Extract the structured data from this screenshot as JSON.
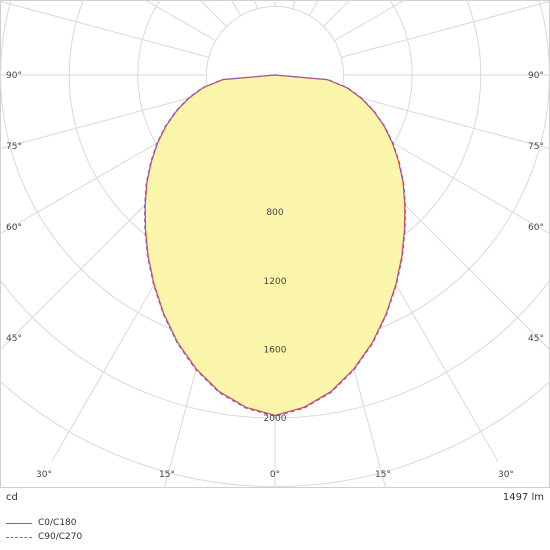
{
  "chart_data": {
    "type": "polar",
    "unit": "cd",
    "flux": "1497 lm",
    "r_max": 2400,
    "ring_values": [
      400,
      800,
      1200,
      1600,
      2000,
      2400
    ],
    "ring_labels": [
      "800",
      "1200",
      "1600",
      "2000"
    ],
    "angle_labels_bottom": [
      "30°",
      "15°",
      "0°",
      "15°",
      "30°"
    ],
    "angle_labels_side": [
      "90°",
      "75°",
      "60°",
      "45°"
    ],
    "series": [
      {
        "name": "C0/C180",
        "color": "#e8403a",
        "dash": false,
        "angles": [
          0,
          5,
          10,
          15,
          20,
          25,
          30,
          35,
          40,
          45,
          50,
          55,
          60,
          65,
          70,
          75,
          80,
          85,
          90
        ],
        "values": [
          1985,
          1945,
          1875,
          1775,
          1660,
          1535,
          1410,
          1290,
          1175,
          1070,
          975,
          880,
          790,
          700,
          610,
          520,
          425,
          305,
          0
        ]
      },
      {
        "name": "C90/C270",
        "color": "#6a6ae8",
        "dash": true,
        "angles": [
          0,
          5,
          10,
          15,
          20,
          25,
          30,
          35,
          40,
          45,
          50,
          55,
          60,
          65,
          70,
          75,
          80,
          85,
          90
        ],
        "values": [
          1990,
          1950,
          1880,
          1780,
          1665,
          1540,
          1415,
          1295,
          1180,
          1075,
          980,
          885,
          795,
          705,
          615,
          525,
          430,
          310,
          0
        ]
      }
    ]
  },
  "footer": {
    "unit": "cd",
    "flux": "1497 lm"
  },
  "legend": [
    {
      "name": "C0/C180",
      "color": "#e8403a"
    },
    {
      "name": "C90/C270",
      "color": "#6a6ae8"
    }
  ]
}
